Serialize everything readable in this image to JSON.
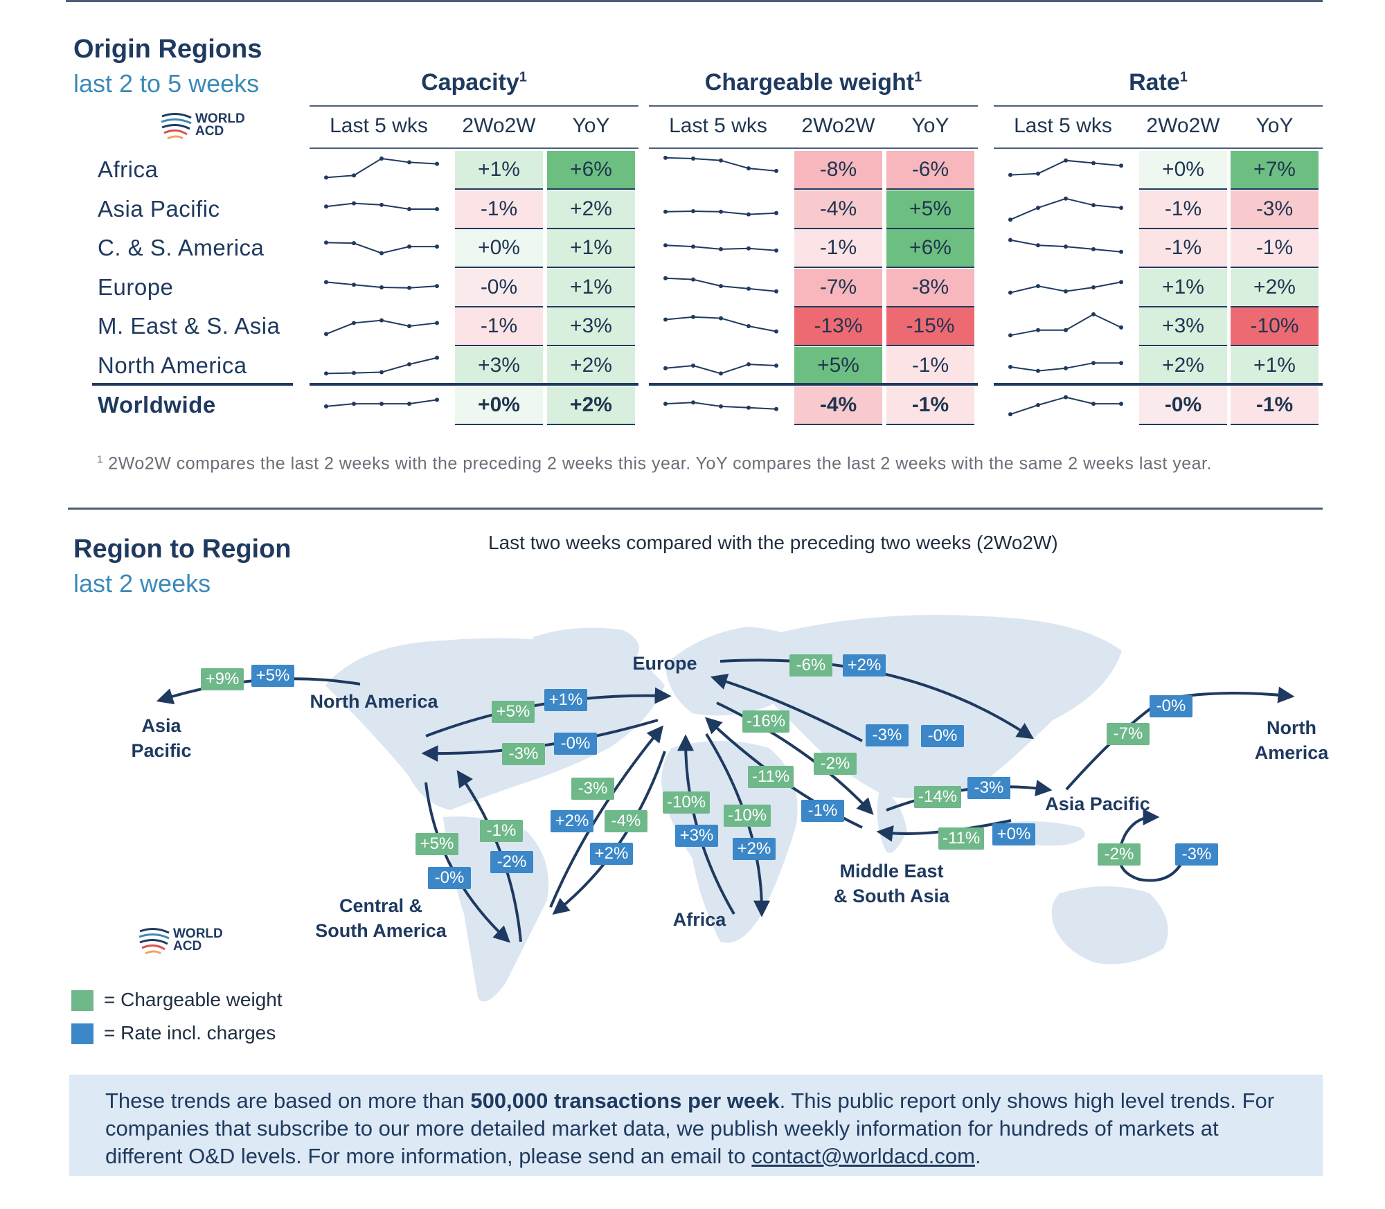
{
  "origin": {
    "title": "Origin Regions",
    "subtitle": "last 2 to 5 weeks",
    "logo_text": [
      "WORLD",
      "ACD"
    ],
    "groups": [
      {
        "label": "Capacity",
        "sup": "1"
      },
      {
        "label": "Chargeable weight",
        "sup": "1"
      },
      {
        "label": "Rate",
        "sup": "1"
      }
    ],
    "col_headers": [
      "Last 5 wks",
      "2Wo2W",
      "YoY"
    ],
    "rows": [
      {
        "region": "Africa",
        "spark": [
          [
            0.2,
            0.28,
            0.92,
            0.78,
            0.72
          ],
          [
            0.95,
            0.92,
            0.85,
            0.55,
            0.45
          ],
          [
            0.3,
            0.35,
            0.85,
            0.75,
            0.65
          ]
        ],
        "cap": [
          "+1%",
          "+6%"
        ],
        "cw": [
          "-8%",
          "-6%"
        ],
        "rate": [
          "+0%",
          "+7%"
        ]
      },
      {
        "region": "Asia Pacific",
        "spark": [
          [
            0.6,
            0.72,
            0.66,
            0.5,
            0.5
          ],
          [
            0.4,
            0.42,
            0.4,
            0.3,
            0.35
          ],
          [
            0.1,
            0.55,
            0.9,
            0.65,
            0.55
          ]
        ],
        "cap": [
          "-1%",
          "+2%"
        ],
        "cw": [
          "-4%",
          "+5%"
        ],
        "rate": [
          "-1%",
          "-3%"
        ]
      },
      {
        "region": "C. & S. America",
        "spark": [
          [
            0.7,
            0.68,
            0.3,
            0.55,
            0.55
          ],
          [
            0.6,
            0.55,
            0.45,
            0.48,
            0.4
          ],
          [
            0.8,
            0.6,
            0.55,
            0.45,
            0.35
          ]
        ],
        "cap": [
          "+0%",
          "+1%"
        ],
        "cw": [
          "-1%",
          "+6%"
        ],
        "rate": [
          "-1%",
          "-1%"
        ]
      },
      {
        "region": "Europe",
        "spark": [
          [
            0.7,
            0.6,
            0.5,
            0.48,
            0.55
          ],
          [
            0.85,
            0.8,
            0.55,
            0.45,
            0.35
          ],
          [
            0.3,
            0.55,
            0.35,
            0.5,
            0.7
          ]
        ],
        "cap": [
          "-0%",
          "+1%"
        ],
        "cw": [
          "-7%",
          "-8%"
        ],
        "rate": [
          "+1%",
          "+2%"
        ]
      },
      {
        "region": "M. East & S. Asia",
        "spark": [
          [
            0.2,
            0.62,
            0.72,
            0.5,
            0.62
          ],
          [
            0.75,
            0.85,
            0.8,
            0.5,
            0.3
          ],
          [
            0.15,
            0.35,
            0.35,
            0.95,
            0.45
          ]
        ],
        "cap": [
          "-1%",
          "+3%"
        ],
        "cw": [
          "-13%",
          "-15%"
        ],
        "rate": [
          "+3%",
          "-10%"
        ]
      },
      {
        "region": "North America",
        "spark": [
          [
            0.2,
            0.22,
            0.25,
            0.55,
            0.8
          ],
          [
            0.4,
            0.5,
            0.2,
            0.55,
            0.5
          ],
          [
            0.45,
            0.3,
            0.4,
            0.6,
            0.6
          ]
        ],
        "cap": [
          "+3%",
          "+2%"
        ],
        "cw": [
          "+5%",
          "-1%"
        ],
        "rate": [
          "+2%",
          "+1%"
        ]
      },
      {
        "region": "Worldwide",
        "spark": [
          [
            0.45,
            0.55,
            0.55,
            0.55,
            0.7
          ],
          [
            0.55,
            0.6,
            0.45,
            0.4,
            0.35
          ],
          [
            0.15,
            0.5,
            0.8,
            0.55,
            0.55
          ]
        ],
        "cap": [
          "+0%",
          "+2%"
        ],
        "cw": [
          "-4%",
          "-1%"
        ],
        "rate": [
          "-0%",
          "-1%"
        ]
      }
    ],
    "footnote_sup": "1",
    "footnote": "2Wo2W compares the last 2 weeks with the preceding 2 weeks this year. YoY compares the last 2 weeks with the same 2 weeks last year."
  },
  "region_to_region": {
    "title": "Region to Region",
    "subtitle": "last 2 weeks",
    "map_heading": "Last two weeks compared with the preceding two weeks (2Wo2W)",
    "logo_text": [
      "WORLD",
      "ACD"
    ],
    "regions": {
      "asia_pacific_left": "Asia Pacific",
      "north_america": "North America",
      "europe": "Europe",
      "central_south_america": "Central & South America",
      "africa": "Africa",
      "middle_east_south_asia": "Middle East & South Asia",
      "asia_pacific": "Asia Pacific",
      "north_america_right": "North America"
    },
    "tags": [
      {
        "v": "+9%",
        "t": "g"
      },
      {
        "v": "+5%",
        "t": "b"
      },
      {
        "v": "-6%",
        "t": "g"
      },
      {
        "v": "+2%",
        "t": "b"
      },
      {
        "v": "+5%",
        "t": "g"
      },
      {
        "v": "+1%",
        "t": "b"
      },
      {
        "v": "-3%",
        "t": "g"
      },
      {
        "v": "-0%",
        "t": "b"
      },
      {
        "v": "-16%",
        "t": "g"
      },
      {
        "v": "-3%",
        "t": "b"
      },
      {
        "v": "-2%",
        "t": "g"
      },
      {
        "v": "-0%",
        "t": "b"
      },
      {
        "v": "-11%",
        "t": "g"
      },
      {
        "v": "-1%",
        "t": "b"
      },
      {
        "v": "-14%",
        "t": "g"
      },
      {
        "v": "-3%",
        "t": "b"
      },
      {
        "v": "-11%",
        "t": "g"
      },
      {
        "v": "+0%",
        "t": "b"
      },
      {
        "v": "-7%",
        "t": "g"
      },
      {
        "v": "-0%",
        "t": "b"
      },
      {
        "v": "-2%",
        "t": "g"
      },
      {
        "v": "-3%",
        "t": "b"
      },
      {
        "v": "-3%",
        "t": "g"
      },
      {
        "v": "+2%",
        "t": "b"
      },
      {
        "v": "-4%",
        "t": "g"
      },
      {
        "v": "+2%",
        "t": "b"
      },
      {
        "v": "-10%",
        "t": "g"
      },
      {
        "v": "+3%",
        "t": "b"
      },
      {
        "v": "-10%",
        "t": "g"
      },
      {
        "v": "+2%",
        "t": "b"
      },
      {
        "v": "-1%",
        "t": "g"
      },
      {
        "v": "-2%",
        "t": "b"
      },
      {
        "v": "+5%",
        "t": "g"
      },
      {
        "v": "-0%",
        "t": "b"
      }
    ],
    "legend": [
      {
        "label": "= Chargeable weight",
        "color": "#6fb88a"
      },
      {
        "label": "= Rate incl. charges",
        "color": "#3b87c8"
      }
    ]
  },
  "info": {
    "text_before": "These trends are based on more than ",
    "text_bold": "500,000 transactions per week",
    "text_after": ". This public report only shows high level trends. For companies that subscribe to our more detailed market data, we publish weekly information for hundreds of markets at different O&D levels. For more information, please send an email to ",
    "email": "contact@worldacd.com",
    "text_end": "."
  },
  "colors": {
    "navy": "#1f3a60",
    "accent_blue": "#3b8ab8",
    "green_tag": "#6fb88a",
    "blue_tag": "#3b87c8",
    "info_bg": "#dde9f4"
  }
}
